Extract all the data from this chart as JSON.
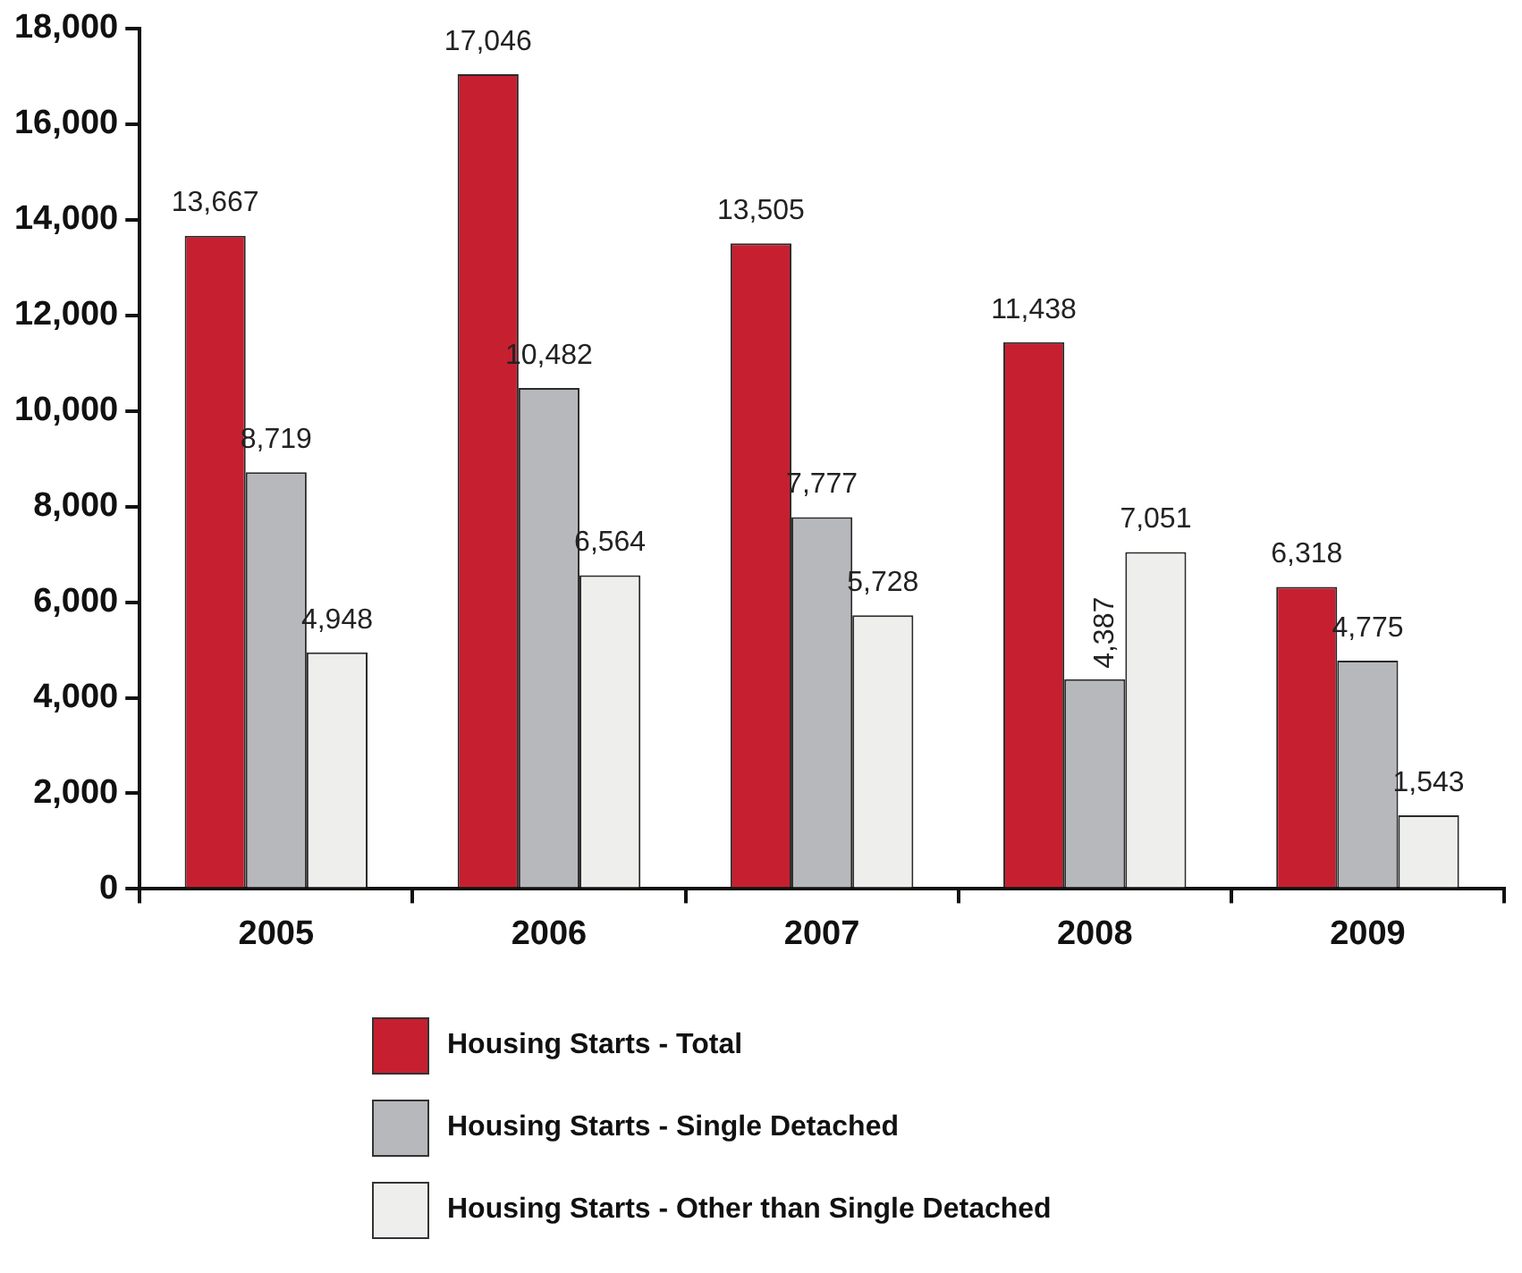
{
  "chart_data": {
    "type": "bar",
    "categories": [
      "2005",
      "2006",
      "2007",
      "2008",
      "2009"
    ],
    "series": [
      {
        "name": "Housing Starts - Total",
        "color": "#c62030",
        "values": [
          13667,
          17046,
          13505,
          11438,
          6318
        ],
        "value_labels": [
          "13,667",
          "17,046",
          "13,505",
          "11,438",
          "6,318"
        ]
      },
      {
        "name": "Housing Starts - Single Detached",
        "color": "#b7b8bc",
        "values": [
          8719,
          10482,
          7777,
          4387,
          4775
        ],
        "value_labels": [
          "8,719",
          "10,482",
          "7,777",
          "4,387",
          "4,775"
        ]
      },
      {
        "name": "Housing Starts - Other than Single Detached",
        "color": "#eeefed",
        "values": [
          4948,
          6564,
          5728,
          7051,
          1543
        ],
        "value_labels": [
          "4,948",
          "6,564",
          "5,728",
          "7,051",
          "1,543"
        ]
      }
    ],
    "ylim": [
      0,
      18000
    ],
    "yticks": [
      0,
      {
        "value": 2000,
        "label": "2,000"
      },
      {
        "value": 4000,
        "label": "4,000"
      },
      {
        "value": 6000,
        "label": "6,000"
      },
      {
        "value": 8000,
        "label": "8,000"
      },
      {
        "value": 10000,
        "label": "10,000"
      },
      {
        "value": 12000,
        "label": "12,000"
      },
      {
        "value": 14000,
        "label": "14,000"
      },
      {
        "value": 16000,
        "label": "16,000"
      },
      {
        "value": 18000,
        "label": "18,000"
      }
    ],
    "grid": false,
    "legend": "bottom"
  }
}
